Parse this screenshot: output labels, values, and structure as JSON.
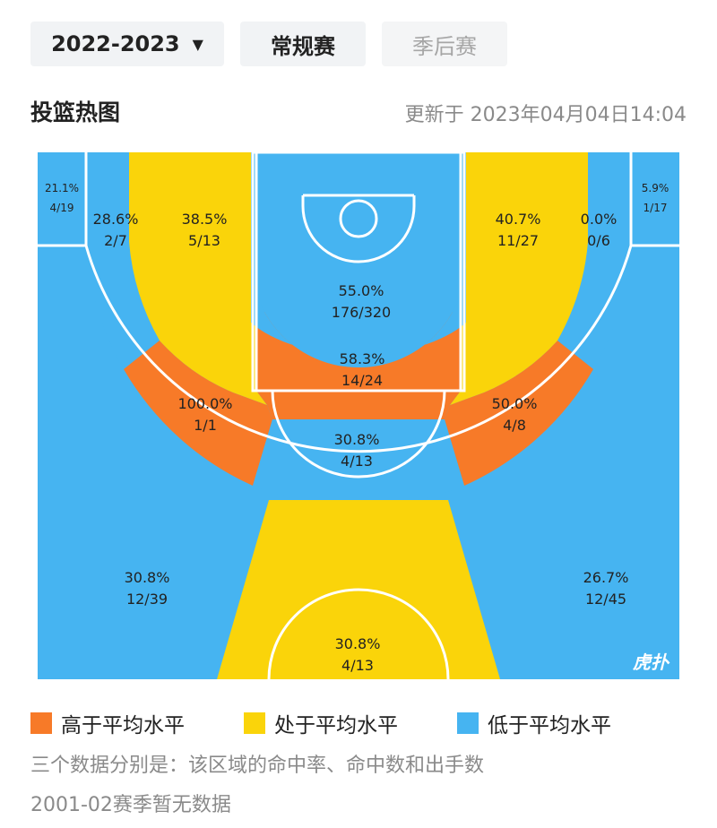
{
  "filters": {
    "season": "2022-2023",
    "regular": "常规赛",
    "playoff": "季后赛"
  },
  "header": {
    "title": "投篮热图",
    "updated": "更新于 2023年04月04日14:04"
  },
  "colors": {
    "above": "#F77A28",
    "average": "#FAD40A",
    "below": "#46B4F1",
    "line": "#ffffff"
  },
  "zones": {
    "left_corner_three": {
      "pct": "21.1%",
      "made_att": "4/19"
    },
    "left_wing_top_three": {
      "pct": "28.6%",
      "made_att": "2/7"
    },
    "left_long_mid": {
      "pct": "38.5%",
      "made_att": "5/13"
    },
    "restricted_area": {
      "pct": "55.0%",
      "made_att": "176/320"
    },
    "right_long_mid": {
      "pct": "40.7%",
      "made_att": "11/27"
    },
    "right_wing_top_three": {
      "pct": "0.0%",
      "made_att": "0/6"
    },
    "right_corner_three": {
      "pct": "5.9%",
      "made_att": "1/17"
    },
    "paint_mid": {
      "pct": "58.3%",
      "made_att": "14/24"
    },
    "left_elbow_mid": {
      "pct": "100.0%",
      "made_att": "1/1"
    },
    "right_elbow_mid": {
      "pct": "50.0%",
      "made_att": "4/8"
    },
    "top_key_mid": {
      "pct": "30.8%",
      "made_att": "4/13"
    },
    "left_wing_three": {
      "pct": "30.8%",
      "made_att": "12/39"
    },
    "right_wing_three": {
      "pct": "26.7%",
      "made_att": "12/45"
    },
    "top_three": {
      "pct": "30.8%",
      "made_att": "4/13"
    }
  },
  "watermark": "虎扑",
  "legend": {
    "above": "高于平均水平",
    "average": "处于平均水平",
    "below": "低于平均水平"
  },
  "notes": {
    "explain": "三个数据分别是：该区域的命中率、命中数和出手数",
    "missing": "2001-02赛季暂无数据"
  }
}
